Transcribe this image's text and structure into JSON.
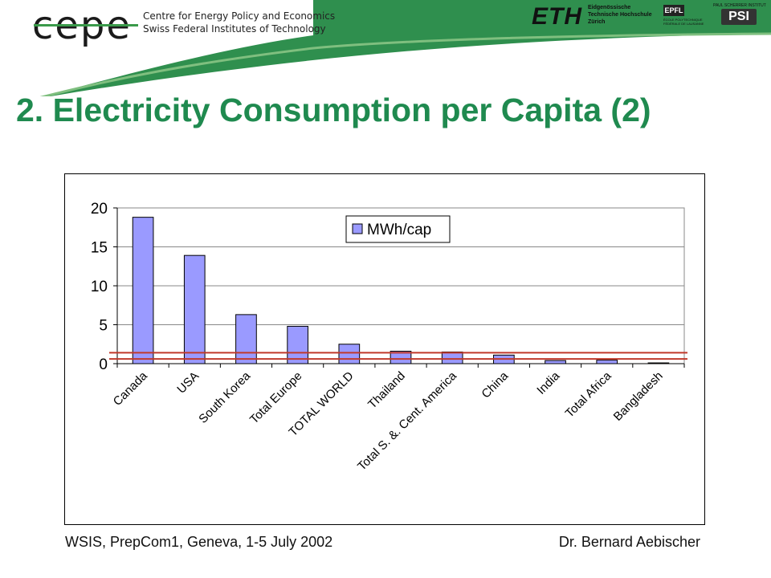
{
  "header": {
    "logo_text": "cepe",
    "org_line1": "Centre for Energy Policy and Economics",
    "org_line2": "Swiss Federal Institutes of Technology",
    "eth_logo": "ETH",
    "eth_line1": "Eidgenössische",
    "eth_line2": "Technische Hochschule",
    "eth_line3": "Zürich",
    "epfl_logo": "EPFL",
    "epfl_line1": "ÉCOLE POLYTECHNIQUE",
    "epfl_line2": "FÉDÉRALE DE LAUSANNE",
    "psi_top": "PAUL SCHERRER INSTITUT",
    "psi_logo": "PSI"
  },
  "slide": {
    "title": "2. Electricity Consumption per Capita (2)"
  },
  "footer": {
    "left": "WSIS, PrepCom1, Geneva, 1-5 July 2002",
    "right": "Dr. Bernard Aebischer"
  },
  "colors": {
    "accent_green": "#1f8a4f",
    "bar_fill": "#9a9aff",
    "reference_line": "#c0392b"
  },
  "chart_data": {
    "type": "bar",
    "categories": [
      "Canada",
      "USA",
      "South Korea",
      "Total Europe",
      "TOTAL WORLD",
      "Thailand",
      "Total S. &. Cent. America",
      "China",
      "India",
      "Total Africa",
      "Bangladesh"
    ],
    "series": [
      {
        "name": "MWh/cap",
        "values": [
          18.8,
          13.9,
          6.3,
          4.8,
          2.5,
          1.6,
          1.5,
          1.1,
          0.4,
          0.45,
          0.1
        ]
      }
    ],
    "ylim": [
      0,
      20
    ],
    "yticks": [
      0,
      5,
      10,
      15,
      20
    ],
    "legend": "top-center",
    "grid": "horizontal",
    "reference_lines": [
      1.4,
      0.6
    ]
  }
}
